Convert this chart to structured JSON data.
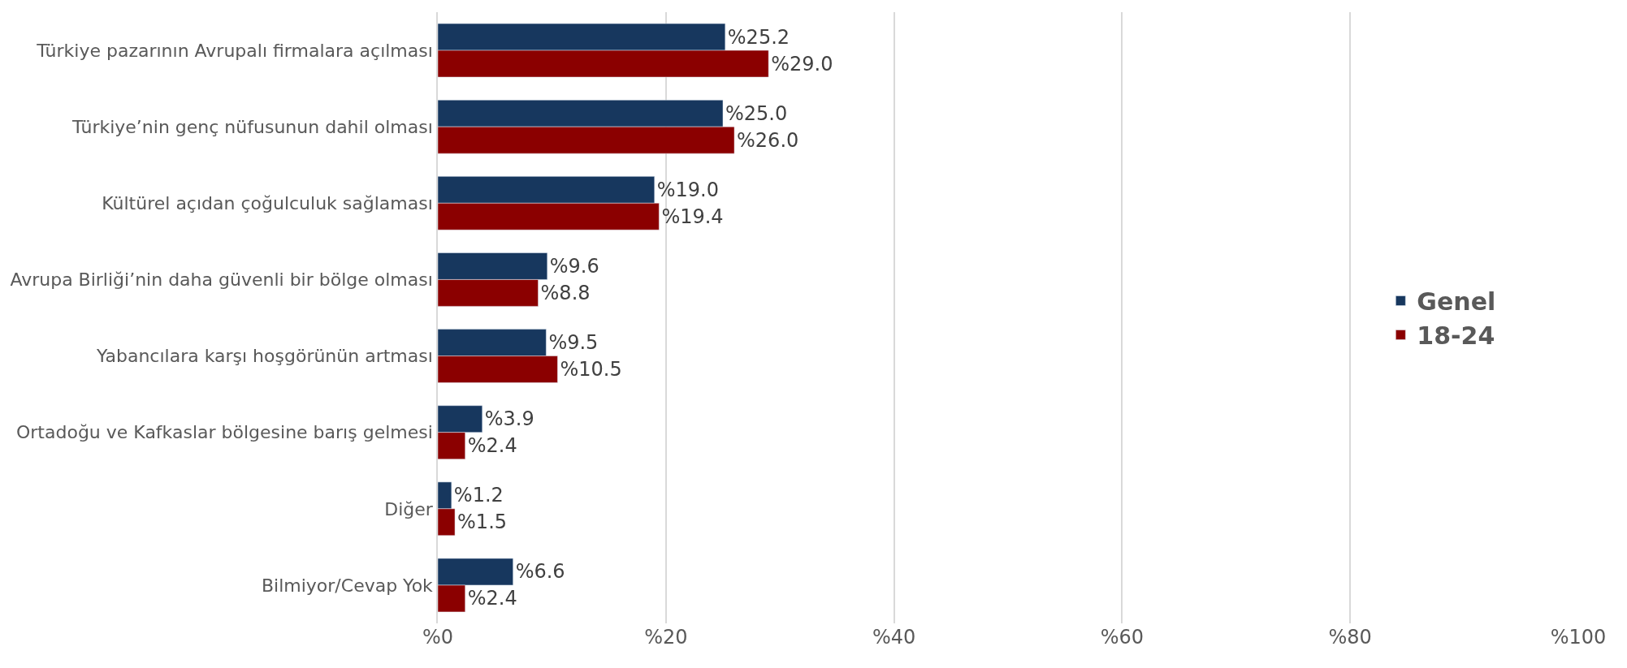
{
  "chart_data": {
    "type": "bar",
    "orientation": "horizontal",
    "categories": [
      "Türkiye pazarının Avrupalı firmalara açılması",
      "Türkiye’nin genç nüfusunun dahil olması",
      "Kültürel açıdan çoğulculuk sağlaması",
      "Avrupa Birliği’nin daha güvenli bir bölge olması",
      "Yabancılara karşı hoşgörünün artması",
      "Ortadoğu ve Kafkaslar bölgesine barış gelmesi",
      "Diğer",
      "Bilmiyor/Cevap Yok"
    ],
    "series": [
      {
        "name": "Genel",
        "color": "#17375e",
        "values": [
          25.2,
          25.0,
          19.0,
          9.6,
          9.5,
          3.9,
          1.2,
          6.6
        ],
        "value_labels": [
          "%25.2",
          "%25.0",
          "%19.0",
          "%9.6",
          "%9.5",
          "%3.9",
          "%1.2",
          "%6.6"
        ]
      },
      {
        "name": "18-24",
        "color": "#8b0000",
        "values": [
          29.0,
          26.0,
          19.4,
          8.8,
          10.5,
          2.4,
          1.5,
          2.4
        ],
        "value_labels": [
          "%29.0",
          "%26.0",
          "%19.4",
          "%8.8",
          "%10.5",
          "%2.4",
          "%1.5",
          "%2.4"
        ]
      }
    ],
    "xlim": [
      0,
      100
    ],
    "xticks": [
      {
        "value": 0,
        "label": "%0"
      },
      {
        "value": 20,
        "label": "%20"
      },
      {
        "value": 40,
        "label": "%40"
      },
      {
        "value": 60,
        "label": "%60"
      },
      {
        "value": 80,
        "label": "%80"
      },
      {
        "value": 100,
        "label": "%100"
      }
    ],
    "grid": "x",
    "legend": "right"
  }
}
